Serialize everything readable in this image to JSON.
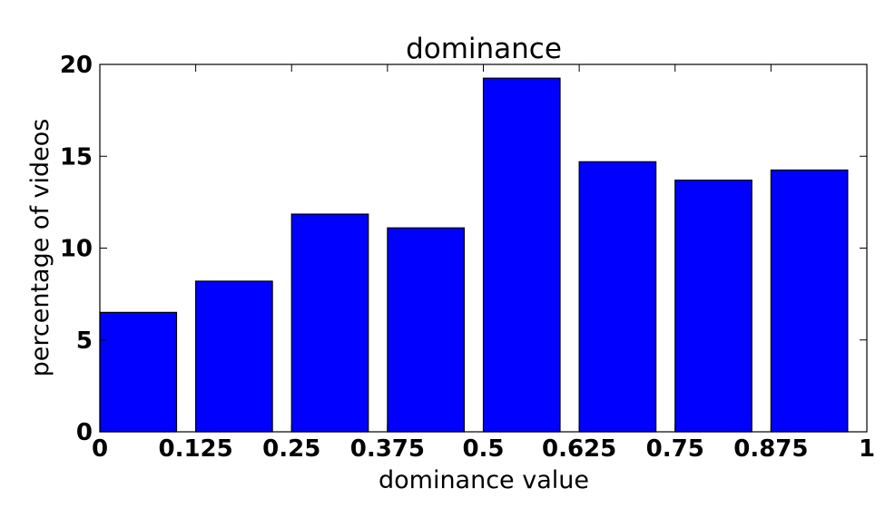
{
  "chart_data": {
    "type": "bar",
    "title": "dominance",
    "xlabel": "dominance value",
    "ylabel": "percentage of videos",
    "x_ticks": [
      "0",
      "0.125",
      "0.25",
      "0.375",
      "0.5",
      "0.625",
      "0.75",
      "0.875",
      "1"
    ],
    "y_ticks": [
      "0",
      "5",
      "10",
      "15",
      "20"
    ],
    "xlim": [
      0,
      1
    ],
    "ylim": [
      0,
      20
    ],
    "bar_width": 0.1,
    "x": [
      0,
      0.125,
      0.25,
      0.375,
      0.5,
      0.625,
      0.75,
      0.875
    ],
    "values": [
      6.5,
      8.2,
      11.85,
      11.1,
      19.25,
      14.7,
      13.7,
      14.25
    ],
    "bar_color": "#0000ff",
    "grid": false,
    "legend": "none"
  }
}
